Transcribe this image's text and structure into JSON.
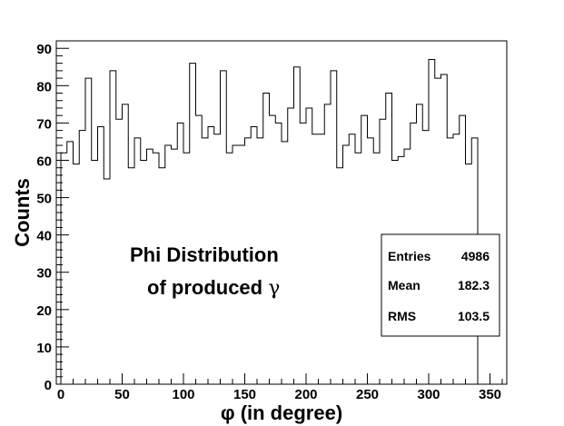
{
  "chart_data": {
    "type": "bar",
    "style": "step-histogram",
    "xlabel": "φ (in degree)",
    "ylabel": "Counts",
    "xlim": [
      0,
      360
    ],
    "ylim": [
      0,
      92
    ],
    "bin_width": 5,
    "x_ticks": [
      "0",
      "50",
      "100",
      "150",
      "200",
      "250",
      "300",
      "350"
    ],
    "y_ticks": [
      "0",
      "10",
      "20",
      "30",
      "40",
      "50",
      "60",
      "70",
      "80",
      "90"
    ],
    "values": [
      62,
      65,
      59,
      68,
      82,
      60,
      69,
      55,
      84,
      71,
      75,
      58,
      66,
      60,
      63,
      62,
      58,
      64,
      63,
      70,
      62,
      86,
      72,
      66,
      69,
      67,
      84,
      62,
      64,
      64,
      66,
      69,
      66,
      78,
      72,
      70,
      65,
      74,
      85,
      70,
      74,
      67,
      67,
      75,
      84,
      58,
      64,
      67,
      62,
      72,
      66,
      62,
      71,
      78,
      60,
      61,
      63,
      70,
      75,
      68,
      87,
      82,
      83,
      66,
      67,
      72,
      59,
      66
    ],
    "annotation": {
      "line1": "Phi Distribution",
      "line2_text": "of produced ",
      "line2_symbol": "γ"
    },
    "stats": [
      {
        "label": "Entries",
        "value": "4986"
      },
      {
        "label": "Mean",
        "value": "182.3"
      },
      {
        "label": "RMS",
        "value": "103.5"
      }
    ],
    "grid": false,
    "line_color": "#000000"
  }
}
